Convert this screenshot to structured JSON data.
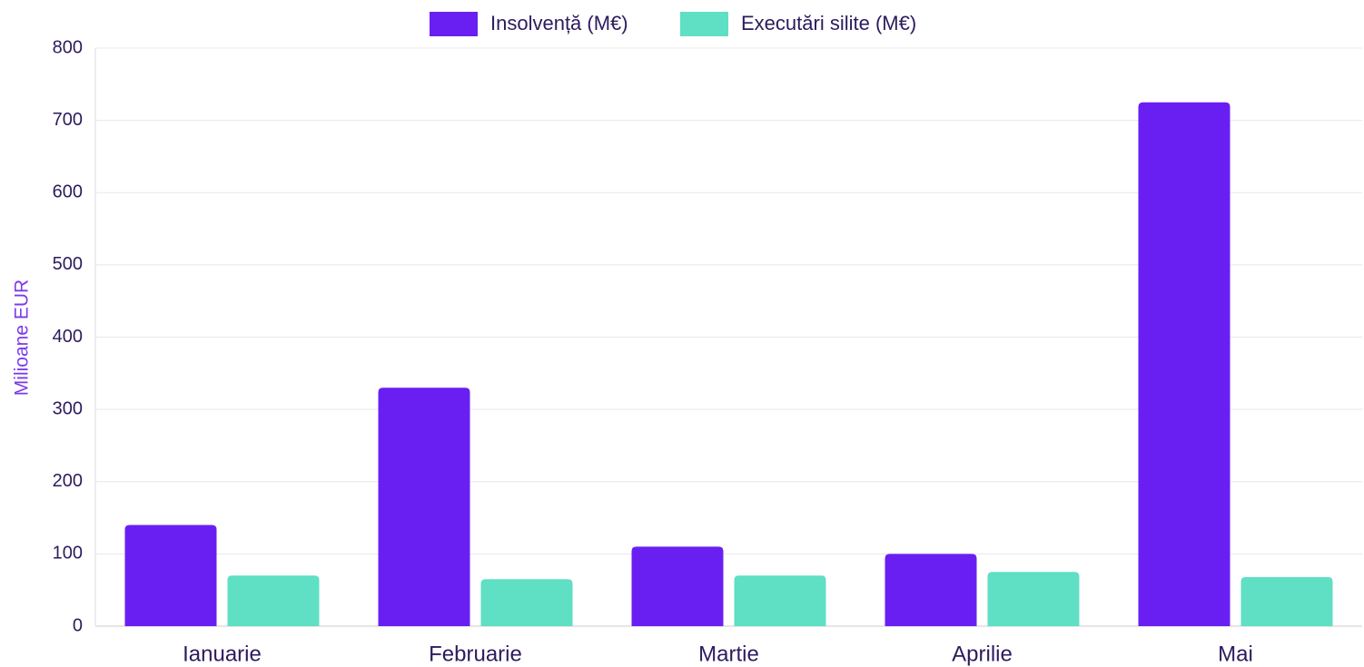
{
  "chart_data": {
    "type": "bar",
    "y_label": "Milioane EUR",
    "categories": [
      "Ianuarie",
      "Februarie",
      "Martie",
      "Aprilie",
      "Mai"
    ],
    "series": [
      {
        "name": "Insolvență (M€)",
        "color": "#6a1ff2",
        "values": [
          140,
          330,
          110,
          100,
          725
        ]
      },
      {
        "name": "Executări silite (M€)",
        "color": "#5fdfc4",
        "values": [
          70,
          65,
          70,
          75,
          68
        ]
      }
    ],
    "ylim": [
      0,
      800
    ],
    "yticks": [
      0,
      100,
      200,
      300,
      400,
      500,
      600,
      700,
      800
    ],
    "grid": true,
    "legend": "top"
  }
}
